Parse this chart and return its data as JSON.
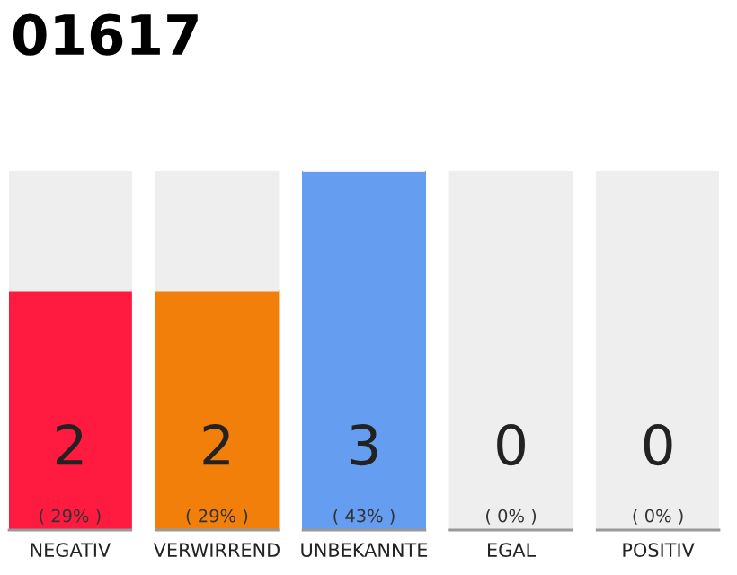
{
  "chart_data": {
    "type": "bar",
    "title": "01617",
    "categories": [
      "NEGATIV",
      "VERWIRREND",
      "UNBEKANNTE",
      "EGAL",
      "POSITIV"
    ],
    "series": [
      {
        "colors": [
          "#ff1a40",
          "#f27f0a",
          "#659df0",
          "#dddddd",
          "#dddddd"
        ],
        "values": [
          2,
          2,
          3,
          0,
          0
        ],
        "value_labels": [
          "2\n( 29% )",
          "2\n( 29% )",
          "3\n( 43% )",
          "0\n( 0% )",
          "0\n( 0% )"
        ]
      },
      {
        "color": "#eeeeee",
        "values": [
          1,
          1,
          0,
          3,
          3
        ]
      }
    ],
    "stacked": true,
    "ylim": [
      0,
      3
    ],
    "tick_labels": "x",
    "grid": false,
    "legend": false
  }
}
